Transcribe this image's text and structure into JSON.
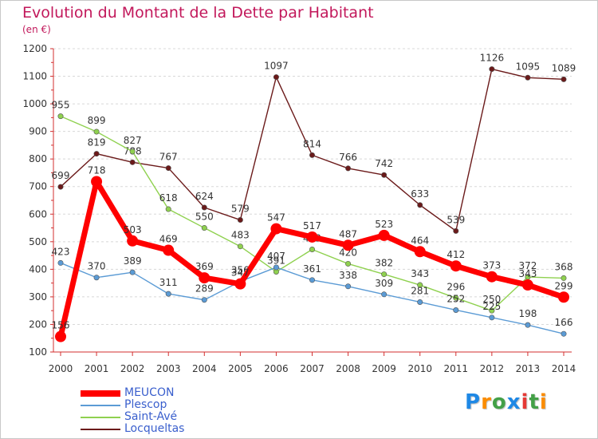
{
  "chart_data": {
    "type": "line",
    "title": "Evolution du Montant de la Dette par Habitant",
    "unit_label": "(en €)",
    "x": [
      "2000",
      "2001",
      "2002",
      "2003",
      "2004",
      "2005",
      "2006",
      "2007",
      "2008",
      "2009",
      "2010",
      "2011",
      "2012",
      "2013",
      "2014"
    ],
    "ylim": [
      100,
      1200
    ],
    "yticks": [
      100,
      200,
      300,
      400,
      500,
      600,
      700,
      800,
      900,
      1000,
      1100,
      1200
    ],
    "grid": "horizontal",
    "legend_position": "bottom-left",
    "series": [
      {
        "name": "Locqueltas",
        "color": "#6b1a1a",
        "values": [
          699,
          819,
          788,
          767,
          624,
          579,
          1097,
          814,
          766,
          742,
          633,
          539,
          1126,
          1095,
          1089
        ]
      },
      {
        "name": "Saint-Avé",
        "color": "#8fd14f",
        "values": [
          955,
          899,
          827,
          618,
          550,
          483,
          391,
          472,
          420,
          382,
          343,
          296,
          250,
          372,
          368
        ]
      },
      {
        "name": "Plescop",
        "color": "#5b9bd5",
        "values": [
          423,
          370,
          389,
          311,
          289,
          356,
          407,
          361,
          338,
          309,
          281,
          252,
          225,
          198,
          166
        ]
      },
      {
        "name": "MEUCON",
        "color": "#ff0000",
        "values": [
          156,
          718,
          503,
          469,
          369,
          347,
          547,
          517,
          487,
          523,
          464,
          412,
          373,
          343,
          299
        ]
      }
    ]
  },
  "legend": [
    "MEUCON",
    "Plescop",
    "Saint-Avé",
    "Locqueltas"
  ],
  "brand": {
    "letters": [
      "P",
      "r",
      "o",
      "x",
      "i",
      "t",
      "i"
    ],
    "colors": [
      "#1e88e5",
      "#fb8c00",
      "#43a047",
      "#1e88e5",
      "#e53935",
      "#43a047",
      "#fb8c00"
    ]
  }
}
